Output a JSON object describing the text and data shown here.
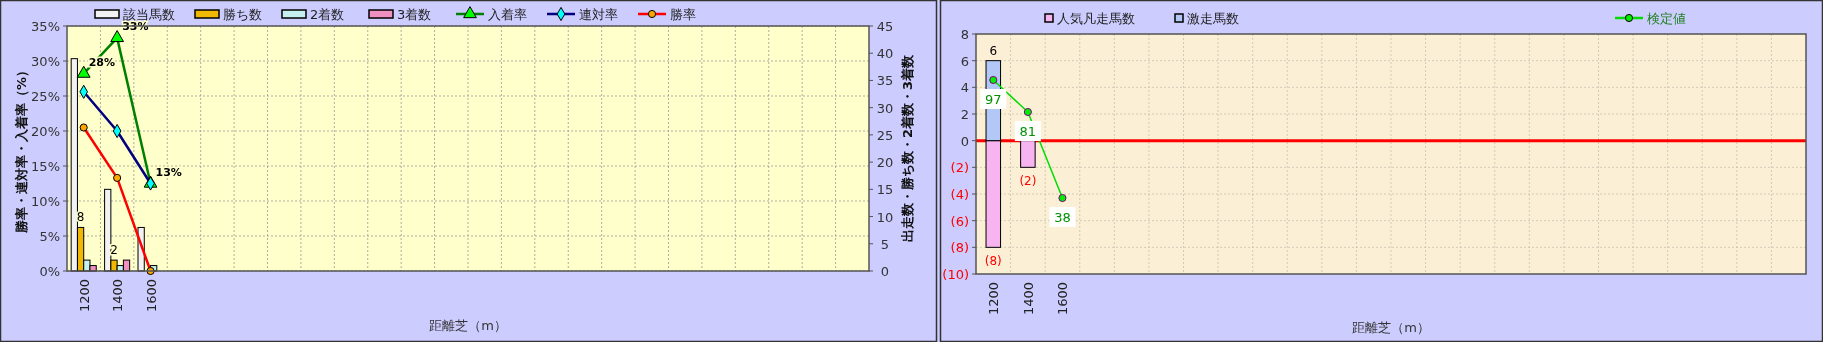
{
  "chart_data": [
    {
      "type": "bar",
      "categories": [
        "1200",
        "1400",
        "1600",
        null,
        null,
        null,
        null,
        null,
        null,
        null,
        null,
        null,
        null,
        null,
        null,
        null,
        null,
        null,
        null,
        null,
        null,
        null,
        null,
        null
      ],
      "xlabel": "距離芝（m）",
      "ylabel": "勝率・連対率・入着率（%）",
      "y2label": "出走数・勝ち数・2着数・3着数",
      "ylim": [
        0,
        35
      ],
      "yticks": [
        {
          "value": 0,
          "label": "0%"
        },
        {
          "value": 5,
          "label": "5%"
        },
        {
          "value": 10,
          "label": "10%"
        },
        {
          "value": 15,
          "label": "15%"
        },
        {
          "value": 20,
          "label": "20%"
        },
        {
          "value": 25,
          "label": "25%"
        },
        {
          "value": 30,
          "label": "30%"
        },
        {
          "value": 35,
          "label": "35%"
        }
      ],
      "y2lim": [
        0,
        45
      ],
      "y2ticks": [
        0,
        5,
        10,
        15,
        20,
        25,
        30,
        35,
        40,
        45
      ],
      "grid": true,
      "legend": "top",
      "series": [
        {
          "name": "該当馬数",
          "type": "bar",
          "axis": "y2",
          "color": "#f2f2f2",
          "values": [
            39,
            15,
            8,
            null,
            null,
            null,
            null,
            null,
            null,
            null,
            null,
            null,
            null,
            null,
            null,
            null,
            null,
            null,
            null,
            null,
            null,
            null,
            null,
            null
          ]
        },
        {
          "name": "勝ち数",
          "type": "bar",
          "axis": "y2",
          "color": "#f0b800",
          "values": [
            8,
            2,
            0,
            null,
            null,
            null,
            null,
            null,
            null,
            null,
            null,
            null,
            null,
            null,
            null,
            null,
            null,
            null,
            null,
            null,
            null,
            null,
            null,
            null
          ],
          "value_labels": [
            "8",
            "2",
            null,
            null,
            null,
            null,
            null,
            null,
            null,
            null,
            null,
            null,
            null,
            null,
            null,
            null,
            null,
            null,
            null,
            null,
            null,
            null,
            null,
            null
          ]
        },
        {
          "name": "2着数",
          "type": "bar",
          "axis": "y2",
          "color": "#c4f0f0",
          "values": [
            2,
            1,
            1,
            null,
            null,
            null,
            null,
            null,
            null,
            null,
            null,
            null,
            null,
            null,
            null,
            null,
            null,
            null,
            null,
            null,
            null,
            null,
            null,
            null
          ]
        },
        {
          "name": "3着数",
          "type": "bar",
          "axis": "y2",
          "color": "#f090c0",
          "values": [
            1,
            2,
            0,
            null,
            null,
            null,
            null,
            null,
            null,
            null,
            null,
            null,
            null,
            null,
            null,
            null,
            null,
            null,
            null,
            null,
            null,
            null,
            null,
            null
          ]
        },
        {
          "name": "入着率",
          "type": "line",
          "color": "#008000",
          "marker": "triangle",
          "colors": [
            "#00ff00",
            "#00ff00",
            "#00ff00",
            null,
            null,
            null,
            null,
            null,
            null,
            null,
            null,
            null,
            null,
            null,
            null,
            null,
            null,
            null,
            null,
            null,
            null,
            null,
            null,
            null
          ],
          "values": [
            28.2,
            33.3,
            12.5,
            null,
            null,
            null,
            null,
            null,
            null,
            null,
            null,
            null,
            null,
            null,
            null,
            null,
            null,
            null,
            null,
            null,
            null,
            null,
            null,
            null
          ],
          "value_labels": [
            "28%",
            "33%",
            "13%",
            null,
            null,
            null,
            null,
            null,
            null,
            null,
            null,
            null,
            null,
            null,
            null,
            null,
            null,
            null,
            null,
            null,
            null,
            null,
            null,
            null
          ]
        },
        {
          "name": "連対率",
          "type": "line",
          "color": "#000080",
          "marker": "diamond",
          "colors": [
            "#00ffff",
            "#00ffff",
            "#00ffff",
            null,
            null,
            null,
            null,
            null,
            null,
            null,
            null,
            null,
            null,
            null,
            null,
            null,
            null,
            null,
            null,
            null,
            null,
            null,
            null,
            null
          ],
          "values": [
            25.6,
            20,
            12.5,
            null,
            null,
            null,
            null,
            null,
            null,
            null,
            null,
            null,
            null,
            null,
            null,
            null,
            null,
            null,
            null,
            null,
            null,
            null,
            null,
            null
          ]
        },
        {
          "name": "勝率",
          "type": "line",
          "color": "#ff0000",
          "marker": "circle",
          "colors": [
            "#ffa500",
            "#ffa500",
            "#ffa500",
            null,
            null,
            null,
            null,
            null,
            null,
            null,
            null,
            null,
            null,
            null,
            null,
            null,
            null,
            null,
            null,
            null,
            null,
            null,
            null,
            null
          ],
          "values": [
            20.5,
            13.3,
            0,
            null,
            null,
            null,
            null,
            null,
            null,
            null,
            null,
            null,
            null,
            null,
            null,
            null,
            null,
            null,
            null,
            null,
            null,
            null,
            null,
            null
          ]
        }
      ]
    },
    {
      "type": "bar",
      "stacked": true,
      "categories": [
        "1200",
        "1400",
        "1600",
        null,
        null,
        null,
        null,
        null,
        null,
        null,
        null,
        null,
        null,
        null,
        null,
        null,
        null,
        null,
        null,
        null,
        null,
        null,
        null,
        null
      ],
      "xlabel": "距離芝（m）",
      "ylim": [
        -10,
        8
      ],
      "yticks": [
        {
          "value": -10,
          "label": "(10)"
        },
        {
          "value": -8,
          "label": "(8)"
        },
        {
          "value": -6,
          "label": "(6)"
        },
        {
          "value": -4,
          "label": "(4)"
        },
        {
          "value": -2,
          "label": "(2)"
        },
        0,
        2,
        4,
        6,
        8
      ],
      "y2lim": [
        0,
        120
      ],
      "grid": true,
      "legend": "top",
      "ref_lines": [
        {
          "axis": "y",
          "value": 0,
          "color": "#ff0000"
        }
      ],
      "series": [
        {
          "name": "人気凡走馬数",
          "type": "bar",
          "color": "#f8b4f0",
          "values": [
            -8,
            -2,
            null,
            null,
            null,
            null,
            null,
            null,
            null,
            null,
            null,
            null,
            null,
            null,
            null,
            null,
            null,
            null,
            null,
            null,
            null,
            null,
            null,
            null
          ],
          "value_labels": [
            "(8)",
            "(2)",
            null,
            null,
            null,
            null,
            null,
            null,
            null,
            null,
            null,
            null,
            null,
            null,
            null,
            null,
            null,
            null,
            null,
            null,
            null,
            null,
            null,
            null
          ]
        },
        {
          "name": "激走馬数",
          "type": "bar",
          "color": "#b4c8f8",
          "values": [
            6,
            null,
            null,
            null,
            null,
            null,
            null,
            null,
            null,
            null,
            null,
            null,
            null,
            null,
            null,
            null,
            null,
            null,
            null,
            null,
            null,
            null,
            null,
            null
          ],
          "value_labels": [
            "6",
            null,
            null,
            null,
            null,
            null,
            null,
            null,
            null,
            null,
            null,
            null,
            null,
            null,
            null,
            null,
            null,
            null,
            null,
            null,
            null,
            null,
            null,
            null
          ]
        },
        {
          "name": "検定値",
          "type": "line",
          "axis": "y2",
          "color": "#00dd00",
          "marker": "circle",
          "colors": [
            "#00ee00",
            "#00ee00",
            "#00ee00",
            null,
            null,
            null,
            null,
            null,
            null,
            null,
            null,
            null,
            null,
            null,
            null,
            null,
            null,
            null,
            null,
            null,
            null,
            null,
            null,
            null
          ],
          "values": [
            97,
            81,
            38,
            null,
            null,
            null,
            null,
            null,
            null,
            null,
            null,
            null,
            null,
            null,
            null,
            null,
            null,
            null,
            null,
            null,
            null,
            null,
            null,
            null
          ],
          "value_labels": [
            "97",
            "81",
            "38",
            null,
            null,
            null,
            null,
            null,
            null,
            null,
            null,
            null,
            null,
            null,
            null,
            null,
            null,
            null,
            null,
            null,
            null,
            null,
            null,
            null
          ]
        }
      ]
    }
  ]
}
